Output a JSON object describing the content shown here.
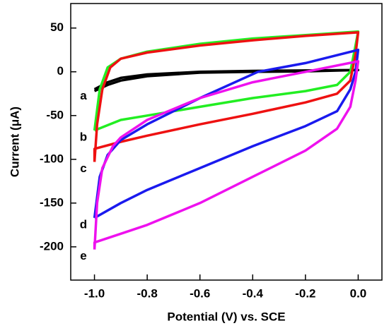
{
  "chart_data": {
    "type": "line",
    "xlabel": "Potential (V) vs. SCE",
    "ylabel": "Current (μA)",
    "xlim": [
      -1.09,
      0.09
    ],
    "ylim": [
      -238,
      78
    ],
    "xticks": [
      {
        "value": -1.0,
        "label": "-1.0"
      },
      -0.8,
      -0.6,
      -0.4,
      -0.2,
      {
        "value": 0.0,
        "label": "0.0"
      }
    ],
    "yticks": [
      50,
      0,
      -50,
      -100,
      -150,
      -200
    ],
    "series": [
      {
        "name": "a",
        "color": "#000000",
        "x": [
          -1.0,
          -0.95,
          -0.9,
          -0.8,
          -0.6,
          -0.4,
          -0.2,
          0.0,
          -0.2,
          -0.4,
          -0.6,
          -0.8,
          -0.9,
          -0.95,
          -1.0
        ],
        "values": [
          -20,
          -12,
          -7,
          -3,
          0,
          1,
          1.5,
          2,
          0.5,
          0,
          -1,
          -5,
          -10,
          -15,
          -22
        ]
      },
      {
        "name": "b",
        "color": "#22ee22",
        "x": [
          -1.0,
          -0.98,
          -0.95,
          -0.9,
          -0.8,
          -0.6,
          -0.4,
          -0.2,
          0.0,
          -0.01,
          -0.03,
          -0.08,
          -0.2,
          -0.4,
          -0.6,
          -0.8,
          -0.9,
          -1.0
        ],
        "values": [
          -67,
          -20,
          5,
          15,
          23,
          32,
          38,
          42,
          46,
          30,
          0,
          -15,
          -22,
          -30,
          -40,
          -50,
          -55,
          -67
        ]
      },
      {
        "name": "c",
        "color": "#ee1111",
        "x": [
          -1.0,
          -0.99,
          -0.97,
          -0.94,
          -0.9,
          -0.8,
          -0.6,
          -0.4,
          -0.2,
          0.0,
          -0.01,
          -0.03,
          -0.08,
          -0.2,
          -0.4,
          -0.6,
          -0.8,
          -0.9,
          -1.0,
          -1.0
        ],
        "values": [
          -103,
          -60,
          -20,
          5,
          15,
          22,
          30,
          36,
          41,
          45,
          20,
          -10,
          -25,
          -35,
          -48,
          -60,
          -73,
          -80,
          -88,
          -103
        ]
      },
      {
        "name": "d",
        "color": "#1a1aee",
        "x": [
          -1.0,
          -0.98,
          -0.95,
          -0.9,
          -0.8,
          -0.6,
          -0.38,
          -0.2,
          0.0,
          -0.01,
          -0.03,
          -0.08,
          -0.2,
          -0.4,
          -0.6,
          -0.8,
          -0.9,
          -1.0
        ],
        "values": [
          -167,
          -120,
          -95,
          -78,
          -60,
          -30,
          0,
          10,
          25,
          0,
          -20,
          -45,
          -62,
          -85,
          -110,
          -135,
          -150,
          -167
        ]
      },
      {
        "name": "e",
        "color": "#ee11ee",
        "x": [
          -1.0,
          -0.99,
          -0.97,
          -0.93,
          -0.9,
          -0.8,
          -0.6,
          -0.4,
          -0.2,
          0.0,
          -0.01,
          -0.03,
          -0.08,
          -0.2,
          -0.4,
          -0.6,
          -0.8,
          -0.9,
          -1.0,
          -1.0
        ],
        "values": [
          -203,
          -150,
          -110,
          -85,
          -75,
          -55,
          -30,
          -12,
          0,
          12,
          -10,
          -40,
          -65,
          -90,
          -120,
          -150,
          -175,
          -185,
          -195,
          -203
        ]
      }
    ]
  }
}
